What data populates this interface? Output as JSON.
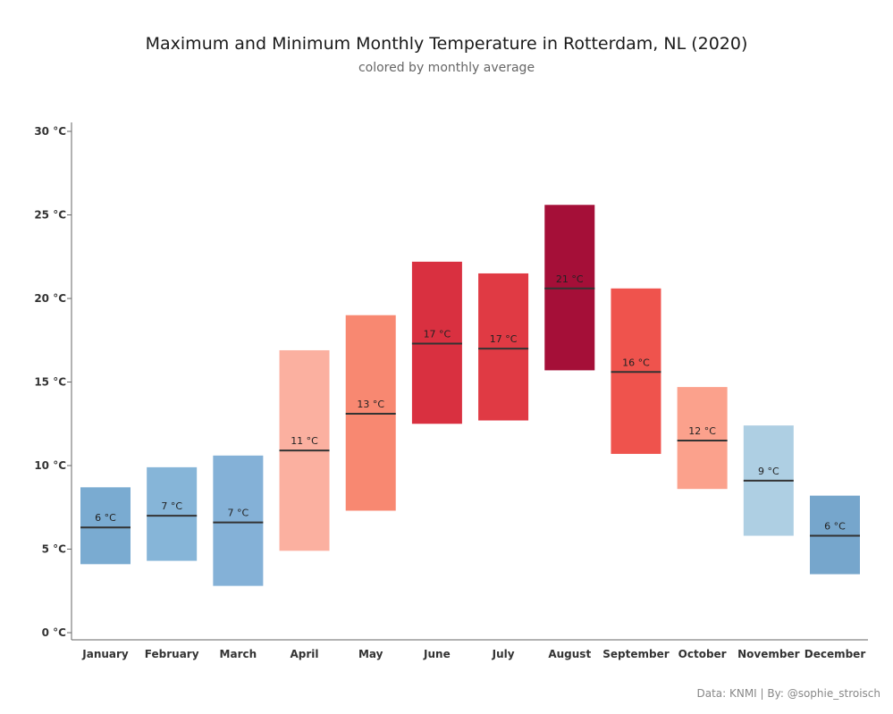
{
  "title": "Maximum and Minimum Monthly Temperature in Rotterdam, NL (2020)",
  "subtitle": "colored by monthly average",
  "credit": "Data: KNMI  |  By: @sophie_stroisch",
  "chart_data": {
    "type": "bar",
    "subtype": "floating range bars with average marker",
    "title": "Maximum and Minimum Monthly Temperature in Rotterdam, NL (2020)",
    "subtitle": "colored by monthly average",
    "xlabel": "",
    "ylabel": "",
    "ylim": [
      0,
      30
    ],
    "yticks": [
      0,
      5,
      10,
      15,
      20,
      25,
      30
    ],
    "ytick_labels": [
      "0 °C",
      "5 °C",
      "10 °C",
      "15 °C",
      "20 °C",
      "25 °C",
      "30 °C"
    ],
    "grid": false,
    "categories": [
      "January",
      "February",
      "March",
      "April",
      "May",
      "June",
      "July",
      "August",
      "September",
      "October",
      "November",
      "December"
    ],
    "max": [
      8.7,
      9.9,
      10.6,
      16.9,
      19.0,
      22.2,
      21.5,
      25.6,
      20.6,
      14.7,
      12.4,
      8.2
    ],
    "min": [
      4.1,
      4.3,
      2.8,
      4.9,
      7.3,
      12.5,
      12.7,
      15.7,
      10.7,
      8.6,
      5.8,
      3.5
    ],
    "avg": [
      6.3,
      7.0,
      6.6,
      10.9,
      13.1,
      17.3,
      17.0,
      20.6,
      15.6,
      11.5,
      9.1,
      5.8
    ],
    "avg_labels": [
      "6 °C",
      "7 °C",
      "7 °C",
      "11 °C",
      "13 °C",
      "17 °C",
      "17 °C",
      "21 °C",
      "16 °C",
      "12 °C",
      "9 °C",
      "6 °C"
    ],
    "colors": [
      "#7aabd1",
      "#86b5d8",
      "#84b1d7",
      "#fbb0a0",
      "#f88871",
      "#d93040",
      "#e03a44",
      "#a50f38",
      "#ef534d",
      "#fba18c",
      "#aecfe3",
      "#76a6cc"
    ],
    "avg_line_color": "#333333"
  }
}
